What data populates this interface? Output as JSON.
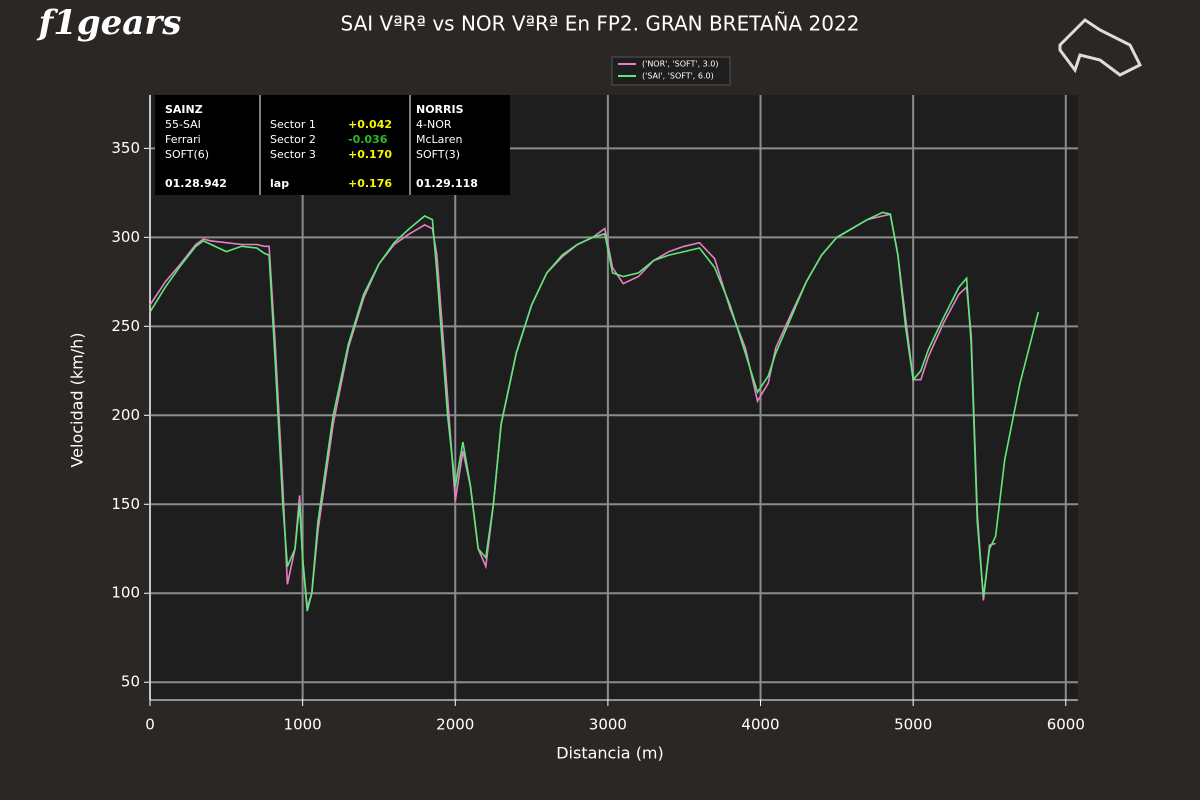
{
  "logo": "f1gears",
  "chart_data": {
    "type": "line",
    "title": "SAI VªRª vs NOR VªRª En FP2. GRAN BRETAÑA 2022",
    "x_label": "Distancia (m)",
    "y_label": "Velocidad (km/h)",
    "x": [
      0,
      100,
      200,
      300,
      350,
      400,
      500,
      600,
      700,
      750,
      780,
      820,
      870,
      900,
      950,
      980,
      1000,
      1030,
      1060,
      1100,
      1200,
      1300,
      1400,
      1500,
      1600,
      1700,
      1800,
      1850,
      1880,
      1950,
      2000,
      2050,
      2100,
      2150,
      2200,
      2250,
      2300,
      2400,
      2500,
      2600,
      2700,
      2800,
      2900,
      2980,
      3030,
      3100,
      3200,
      3300,
      3400,
      3500,
      3600,
      3700,
      3800,
      3900,
      3980,
      4050,
      4100,
      4200,
      4300,
      4400,
      4500,
      4600,
      4700,
      4800,
      4850,
      4900,
      4950,
      5000,
      5050,
      5100,
      5200,
      5300,
      5350,
      5380,
      5420,
      5460,
      5500,
      5540,
      5600,
      5700,
      5820
    ],
    "series": [
      {
        "name": "('NOR', 'SOFT', 3.0)",
        "color": "#e77fc6",
        "values": [
          262,
          275,
          285,
          296,
          299,
          298,
          297,
          296,
          296,
          295,
          295,
          240,
          160,
          105,
          125,
          155,
          120,
          92,
          100,
          135,
          195,
          238,
          266,
          285,
          296,
          302,
          307,
          305,
          290,
          210,
          152,
          180,
          160,
          125,
          115,
          150,
          195,
          235,
          262,
          280,
          289,
          296,
          300,
          305,
          283,
          274,
          278,
          287,
          292,
          295,
          297,
          288,
          260,
          238,
          208,
          218,
          238,
          257,
          275,
          290,
          300,
          305,
          310,
          312,
          313,
          290,
          255,
          220,
          220,
          233,
          252,
          268,
          272,
          245,
          145,
          96,
          127,
          128,
          null,
          null,
          null
        ]
      },
      {
        "name": "('SAI', 'SOFT', 6.0)",
        "color": "#5fe87a",
        "values": [
          258,
          272,
          284,
          295,
          298,
          296,
          292,
          295,
          294,
          291,
          290,
          230,
          150,
          115,
          125,
          150,
          120,
          90,
          100,
          140,
          200,
          240,
          268,
          285,
          297,
          305,
          312,
          310,
          280,
          200,
          160,
          185,
          160,
          125,
          120,
          150,
          195,
          235,
          262,
          280,
          290,
          296,
          300,
          302,
          280,
          278,
          280,
          287,
          290,
          292,
          294,
          283,
          262,
          235,
          213,
          222,
          235,
          255,
          275,
          290,
          300,
          305,
          310,
          314,
          313,
          290,
          250,
          220,
          225,
          237,
          255,
          272,
          277,
          240,
          140,
          98,
          125,
          132,
          175,
          218,
          258
        ]
      }
    ],
    "xlim": [
      0,
      6080
    ],
    "ylim": [
      40,
      380
    ],
    "xticks": [
      0,
      1000,
      2000,
      3000,
      4000,
      5000,
      6000
    ],
    "yticks": [
      50,
      100,
      150,
      200,
      250,
      300,
      350
    ],
    "grid": true,
    "legend": "upper center",
    "info_box": {
      "driver1": [
        "SAINZ",
        "55-SAI",
        "Ferrari",
        "SOFT(6)"
      ],
      "lap_time1": "01.28.942",
      "sectors": [
        "Sector 1",
        "Sector 2",
        "Sector 3"
      ],
      "deltas": [
        "+0.042",
        "-0.036",
        "+0.170"
      ],
      "lap_label": "lap",
      "lap_delta": "+0.176",
      "driver2": [
        "NORRIS",
        "4-NOR",
        "McLaren",
        "SOFT(3)"
      ],
      "lap_time2": "01.29.118"
    }
  }
}
